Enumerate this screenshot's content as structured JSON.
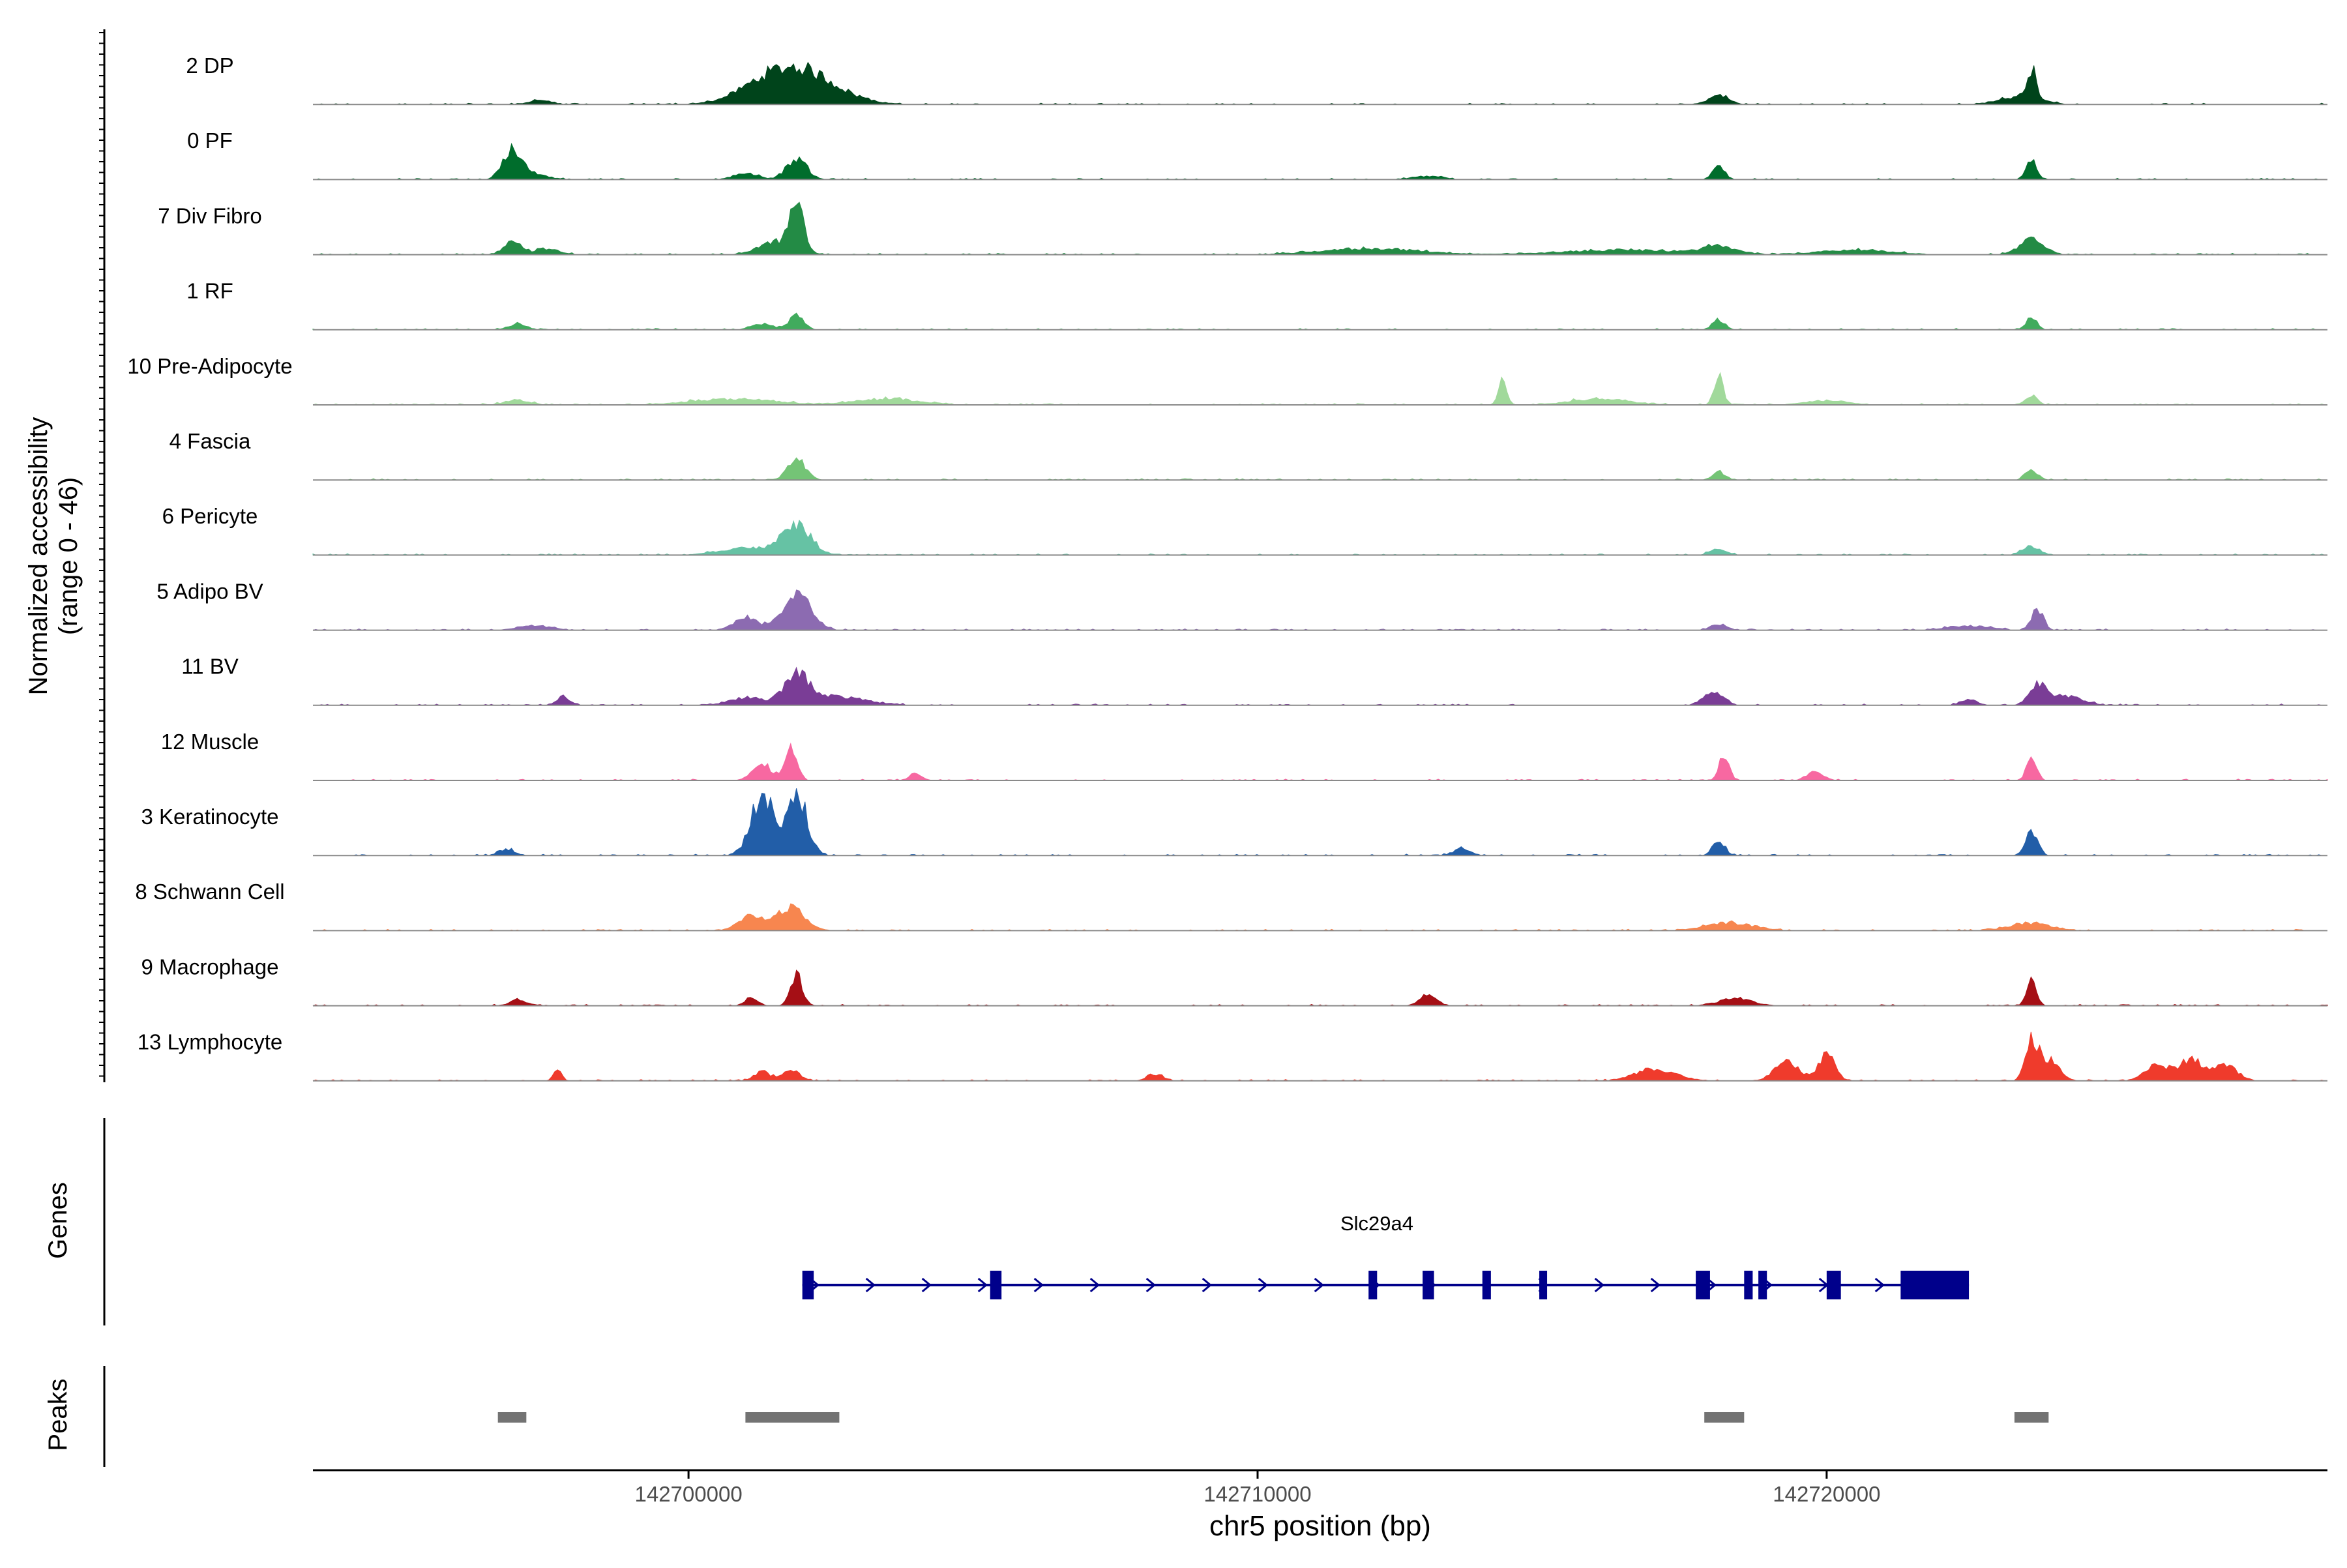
{
  "chart_data": {
    "type": "area",
    "title": "",
    "region": "chr5",
    "xlabel": "chr5 position (bp)",
    "ylabel": "Normalized accessibility",
    "ylabel_range": "(range 0 - 46)",
    "ylim": [
      0,
      46
    ],
    "xlim": [
      142693400,
      142728800
    ],
    "x_ticks": [
      142700000,
      142710000,
      142720000
    ],
    "x_tick_labels": [
      "142700000",
      "142710000",
      "142720000"
    ],
    "track_labels": {
      "genes": "Genes",
      "peaks": "Peaks"
    },
    "tracks": [
      {
        "name": "2 DP",
        "color": "#00441B",
        "peaks": [
          [
            142701900,
            24,
            900
          ],
          [
            142701200,
            4,
            600
          ],
          [
            142697400,
            3,
            250
          ],
          [
            142718100,
            6,
            250
          ],
          [
            142723600,
            20,
            120
          ],
          [
            142723400,
            5,
            500
          ]
        ]
      },
      {
        "name": "0 PF",
        "color": "#006D2C",
        "peaks": [
          [
            142696900,
            20,
            220
          ],
          [
            142697300,
            4,
            300
          ],
          [
            142701900,
            14,
            250
          ],
          [
            142701000,
            4,
            300
          ],
          [
            142718100,
            8,
            150
          ],
          [
            142723600,
            14,
            120
          ],
          [
            142713000,
            2,
            400
          ]
        ]
      },
      {
        "name": "7 Div Fibro",
        "color": "#238B45",
        "peaks": [
          [
            142701900,
            30,
            180
          ],
          [
            142701500,
            8,
            400
          ],
          [
            142696900,
            10,
            200
          ],
          [
            142697500,
            4,
            300
          ],
          [
            142718100,
            5,
            400
          ],
          [
            142723600,
            10,
            300
          ],
          [
            142712000,
            4,
            1200
          ],
          [
            142716500,
            3,
            1500
          ],
          [
            142720500,
            3,
            900
          ]
        ]
      },
      {
        "name": "1 RF",
        "color": "#41AB5D",
        "peaks": [
          [
            142701900,
            10,
            180
          ],
          [
            142701300,
            4,
            250
          ],
          [
            142697000,
            4,
            220
          ],
          [
            142718100,
            7,
            150
          ],
          [
            142723600,
            9,
            130
          ]
        ]
      },
      {
        "name": "10 Pre-Adipocyte",
        "color": "#A1D99B",
        "peaks": [
          [
            142718100,
            20,
            110
          ],
          [
            142714300,
            16,
            100
          ],
          [
            142716000,
            4,
            700
          ],
          [
            142700800,
            4,
            1000
          ],
          [
            142703500,
            4,
            800
          ],
          [
            142697000,
            3,
            300
          ],
          [
            142723600,
            6,
            150
          ],
          [
            142720000,
            3,
            500
          ]
        ]
      },
      {
        "name": "4 Fascia",
        "color": "#74C476",
        "peaks": [
          [
            142701900,
            14,
            220
          ],
          [
            142718100,
            5,
            150
          ],
          [
            142723600,
            7,
            150
          ]
        ]
      },
      {
        "name": "6 Pericyte",
        "color": "#66C2A4",
        "peaks": [
          [
            142701900,
            20,
            350
          ],
          [
            142701000,
            5,
            600
          ],
          [
            142718100,
            4,
            200
          ],
          [
            142723600,
            6,
            200
          ]
        ]
      },
      {
        "name": "5 Adipo BV",
        "color": "#8C6BB1",
        "peaks": [
          [
            142701900,
            24,
            350
          ],
          [
            142701000,
            8,
            300
          ],
          [
            142697300,
            3,
            400
          ],
          [
            142718100,
            4,
            200
          ],
          [
            142723700,
            14,
            150
          ],
          [
            142722500,
            3,
            500
          ]
        ]
      },
      {
        "name": "11 BV",
        "color": "#7A3D96",
        "peaks": [
          [
            142701900,
            18,
            300
          ],
          [
            142702500,
            6,
            800
          ],
          [
            142701000,
            5,
            400
          ],
          [
            142697800,
            6,
            150
          ],
          [
            142718000,
            8,
            250
          ],
          [
            142723700,
            14,
            200
          ],
          [
            142724200,
            6,
            400
          ],
          [
            142722500,
            4,
            200
          ]
        ]
      },
      {
        "name": "12 Muscle",
        "color": "#F768A1",
        "peaks": [
          [
            142701800,
            22,
            150
          ],
          [
            142701300,
            10,
            250
          ],
          [
            142718200,
            18,
            120
          ],
          [
            142723600,
            16,
            120
          ],
          [
            142719800,
            6,
            200
          ],
          [
            142704000,
            5,
            150
          ]
        ]
      },
      {
        "name": "3 Keratinocyte",
        "color": "#225EA8",
        "peaks": [
          [
            142701300,
            40,
            280
          ],
          [
            142701900,
            42,
            250
          ],
          [
            142718100,
            10,
            150
          ],
          [
            142723600,
            16,
            150
          ],
          [
            142696800,
            4,
            200
          ],
          [
            142713600,
            5,
            200
          ]
        ]
      },
      {
        "name": "8 Schwann Cell",
        "color": "#F7864F",
        "peaks": [
          [
            142701800,
            16,
            350
          ],
          [
            142701100,
            10,
            300
          ],
          [
            142718300,
            5,
            600
          ],
          [
            142723600,
            5,
            500
          ]
        ]
      },
      {
        "name": "9 Macrophage",
        "color": "#A50F15",
        "peaks": [
          [
            142701900,
            20,
            150
          ],
          [
            142701100,
            6,
            150
          ],
          [
            142713000,
            8,
            200
          ],
          [
            142723600,
            16,
            120
          ],
          [
            142697000,
            4,
            200
          ],
          [
            142718400,
            5,
            400
          ]
        ]
      },
      {
        "name": "13 Lymphocyte",
        "color": "#EF3B2C",
        "peaks": [
          [
            142723600,
            26,
            150
          ],
          [
            142723900,
            14,
            250
          ],
          [
            142720000,
            18,
            200
          ],
          [
            142719300,
            12,
            300
          ],
          [
            142717000,
            8,
            500
          ],
          [
            142725800,
            10,
            300
          ],
          [
            142726400,
            14,
            300
          ],
          [
            142727000,
            10,
            300
          ],
          [
            142701800,
            8,
            200
          ],
          [
            142701300,
            6,
            200
          ],
          [
            142697700,
            7,
            100
          ],
          [
            142708200,
            4,
            200
          ]
        ]
      }
    ],
    "gene": {
      "name": "Slc29a4",
      "strand": "+",
      "start": 142702000,
      "end": 142722500,
      "color": "#00008B",
      "exons": [
        [
          142702000,
          142702200
        ],
        [
          142705300,
          142705500
        ],
        [
          142711950,
          142712100
        ],
        [
          142712900,
          142713100
        ],
        [
          142713950,
          142714100
        ],
        [
          142714950,
          142715050
        ],
        [
          142717700,
          142717950
        ],
        [
          142718550,
          142718700
        ],
        [
          142718800,
          142718950
        ],
        [
          142720000,
          142720250
        ],
        [
          142721300,
          142722500
        ]
      ]
    },
    "peaks_track": {
      "color": "#737373",
      "regions": [
        [
          142696650,
          142697150
        ],
        [
          142701000,
          142702650
        ],
        [
          142717850,
          142718550
        ],
        [
          142723300,
          142723900
        ]
      ]
    }
  }
}
